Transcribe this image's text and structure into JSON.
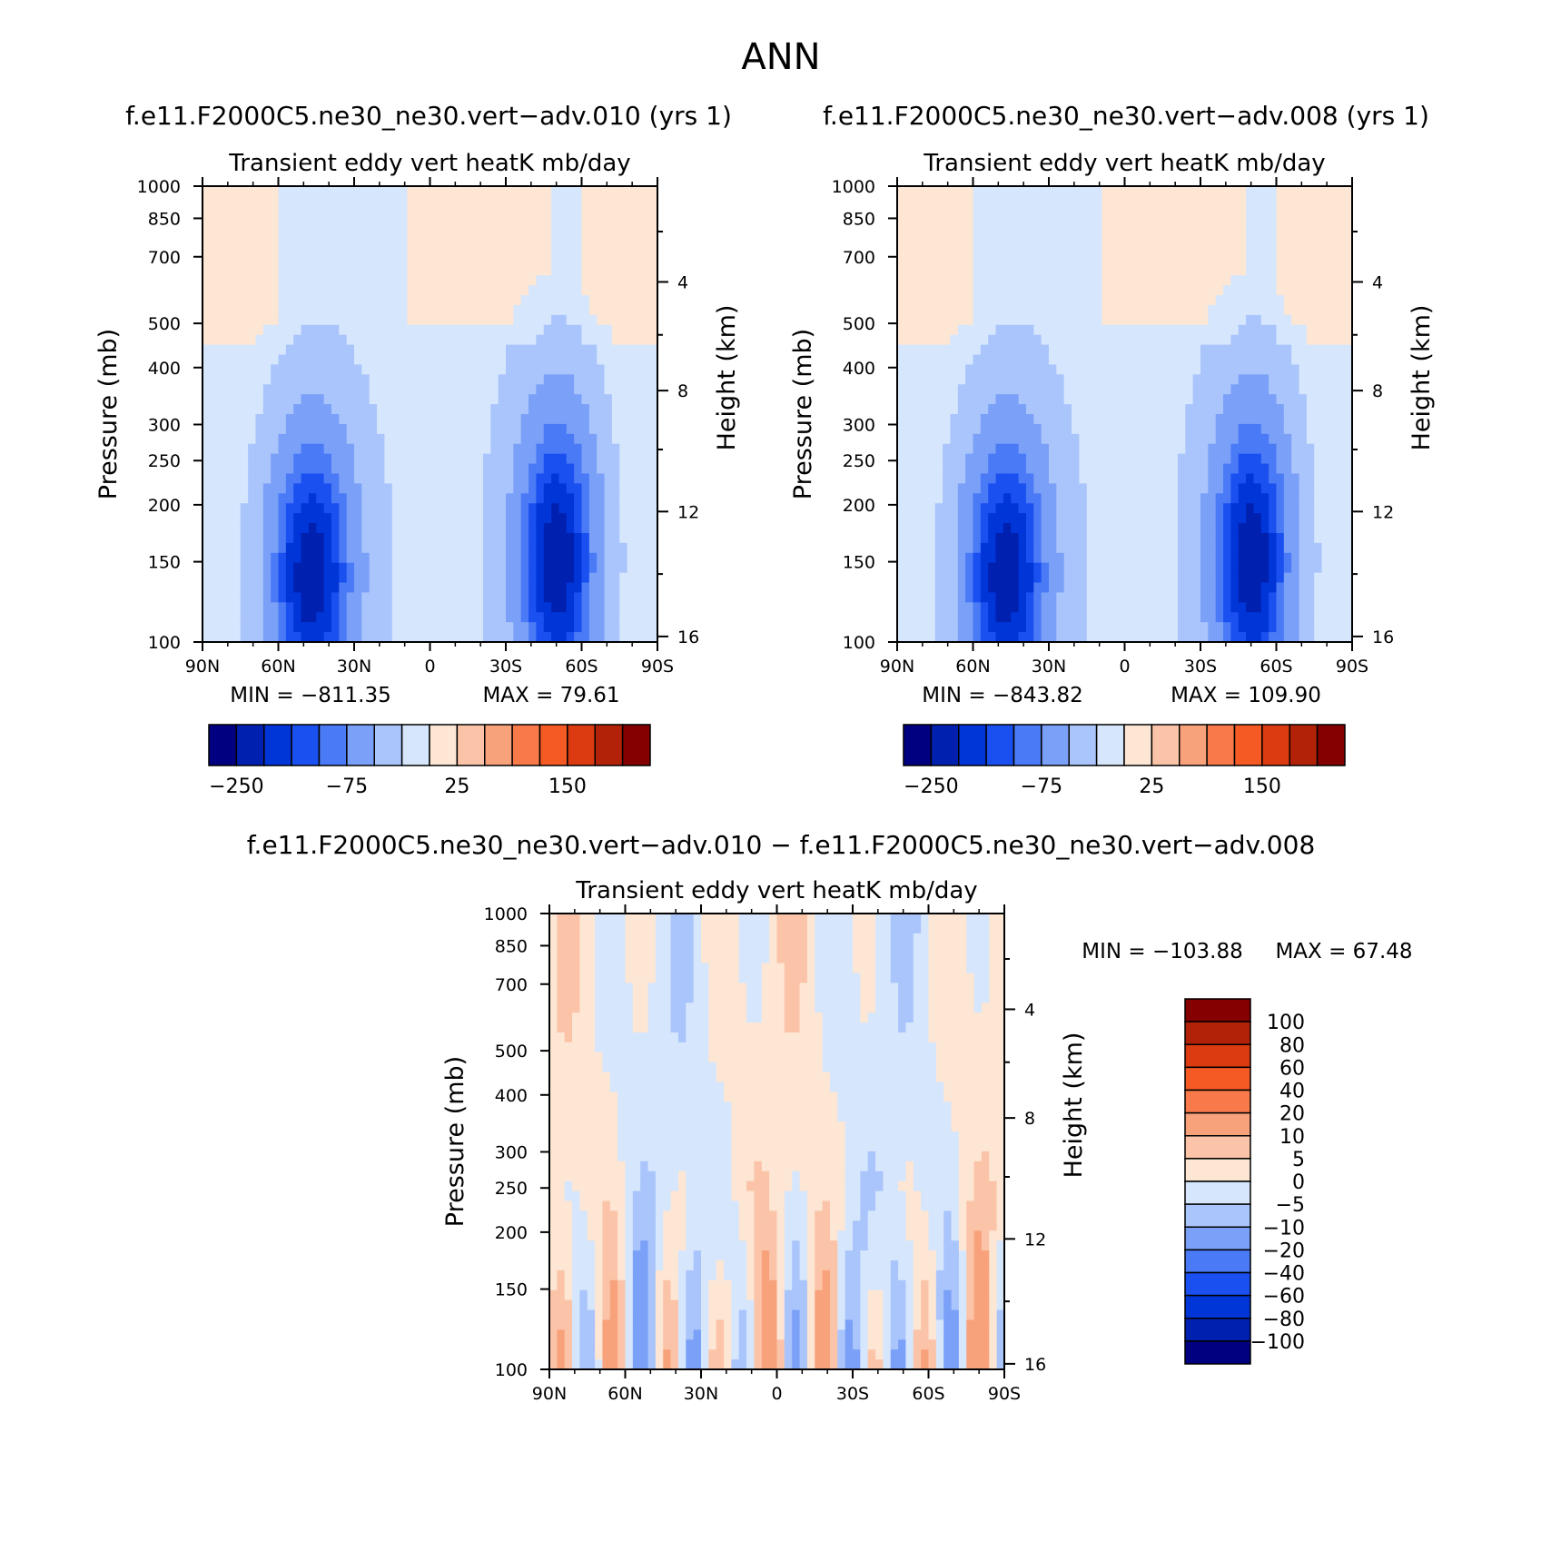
{
  "figure_title": "ANN",
  "panel_titles": {
    "run_a": "f.e11.F2000C5.ne30_ne30.vert−adv.010 (yrs 1)",
    "run_b": "f.e11.F2000C5.ne30_ne30.vert−adv.008 (yrs 1)",
    "diff": "f.e11.F2000C5.ne30_ne30.vert−adv.010 − f.e11.F2000C5.ne30_ne30.vert−adv.008"
  },
  "chart_data": [
    {
      "type": "heatmap",
      "panel": "run_a",
      "title": "Transient eddy vert heatK mb/day",
      "xlabel": "",
      "ylabel": "Pressure (mb)",
      "ylabel_right": "Height (km)",
      "x_ticks": [
        "90N",
        "60N",
        "30N",
        "0",
        "30S",
        "60S",
        "90S"
      ],
      "y_ticks": [
        1000,
        850,
        700,
        500,
        400,
        300,
        250,
        200,
        150,
        100
      ],
      "y_right_ticks": [
        4,
        8,
        12,
        16
      ],
      "ylim": [
        1000,
        100
      ],
      "y_scale": "log",
      "min_text": "MIN = −811.35",
      "max_text": "MAX = 79.61",
      "colorbar_labels": [
        "−250",
        "−75",
        "25",
        "150"
      ],
      "colors": [
        "#000080",
        "#0020b0",
        "#0035d8",
        "#1b50f0",
        "#4a7af5",
        "#7ba0f8",
        "#aac5fb",
        "#d6e6fc",
        "#fde6d4",
        "#fbc4a8",
        "#f8a27c",
        "#f87a4a",
        "#f55a24",
        "#dc3a10",
        "#b22208",
        "#850000"
      ]
    },
    {
      "type": "heatmap",
      "panel": "run_b",
      "title": "Transient eddy vert heatK mb/day",
      "xlabel": "",
      "ylabel": "Pressure (mb)",
      "ylabel_right": "Height (km)",
      "x_ticks": [
        "90N",
        "60N",
        "30N",
        "0",
        "30S",
        "60S",
        "90S"
      ],
      "y_ticks": [
        1000,
        850,
        700,
        500,
        400,
        300,
        250,
        200,
        150,
        100
      ],
      "y_right_ticks": [
        4,
        8,
        12,
        16
      ],
      "ylim": [
        1000,
        100
      ],
      "y_scale": "log",
      "min_text": "MIN = −843.82",
      "max_text": "MAX = 109.90",
      "colorbar_labels": [
        "−250",
        "−75",
        "25",
        "150"
      ],
      "colors": [
        "#000080",
        "#0020b0",
        "#0035d8",
        "#1b50f0",
        "#4a7af5",
        "#7ba0f8",
        "#aac5fb",
        "#d6e6fc",
        "#fde6d4",
        "#fbc4a8",
        "#f8a27c",
        "#f87a4a",
        "#f55a24",
        "#dc3a10",
        "#b22208",
        "#850000"
      ]
    },
    {
      "type": "heatmap",
      "panel": "diff",
      "title": "Transient eddy vert heatK mb/day",
      "xlabel": "",
      "ylabel": "Pressure (mb)",
      "ylabel_right": "Height (km)",
      "x_ticks": [
        "90N",
        "60N",
        "30N",
        "0",
        "30S",
        "60S",
        "90S"
      ],
      "y_ticks": [
        1000,
        850,
        700,
        500,
        400,
        300,
        250,
        200,
        150,
        100
      ],
      "y_right_ticks": [
        4,
        8,
        12,
        16
      ],
      "ylim": [
        1000,
        100
      ],
      "y_scale": "log",
      "min_text": "MIN = −103.88",
      "max_text": "MAX = 67.48",
      "colorbar_labels": [
        "100",
        "80",
        "60",
        "40",
        "20",
        "10",
        "5",
        "0",
        "−5",
        "−10",
        "−20",
        "−40",
        "−60",
        "−80",
        "−100"
      ],
      "colors": [
        "#850000",
        "#b22208",
        "#dc3a10",
        "#f55a24",
        "#f87a4a",
        "#f8a27c",
        "#fbc4a8",
        "#fde6d4",
        "#d6e6fc",
        "#aac5fb",
        "#7ba0f8",
        "#4a7af5",
        "#1b50f0",
        "#0035d8",
        "#0020b0",
        "#000080"
      ]
    }
  ]
}
